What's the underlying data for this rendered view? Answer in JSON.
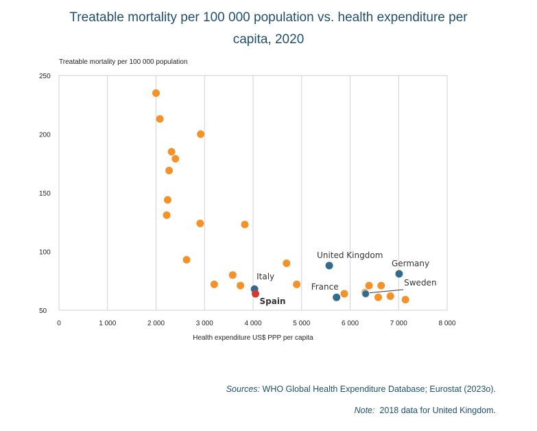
{
  "title_line1": "Treatable mortality per 100 000 population vs. health expenditure per",
  "title_line2": "capita, 2020",
  "sources_label": "Sources:",
  "sources_text": "WHO Global Health Expenditure Database; Eurostat (2023o).",
  "note_label": "Note:",
  "note_text": "2018 data for United Kingdom.",
  "colors": {
    "default": "#f39229",
    "highlight": "#336b8f",
    "spain": "#d63a2e",
    "grid": "#d0d0d0"
  },
  "chart_data": {
    "type": "scatter",
    "title": "Treatable mortality per 100 000 population vs. health expenditure per capita, 2020",
    "xlabel": "Health expenditure US$ PPP per capita",
    "ylabel": "Treatable mortality per 100 000 population",
    "xlim": [
      0,
      8000
    ],
    "ylim": [
      50,
      250
    ],
    "x_ticks": [
      0,
      1000,
      2000,
      3000,
      4000,
      5000,
      6000,
      7000,
      8000
    ],
    "x_tick_labels": [
      "0",
      "1 000",
      "2 000",
      "3 000",
      "4 000",
      "5 000",
      "6 000",
      "7 000",
      "8 000"
    ],
    "y_ticks": [
      50,
      100,
      150,
      200,
      250
    ],
    "y_tick_labels": [
      "50",
      "100",
      "150",
      "200",
      "250"
    ],
    "grid": "vertical",
    "points": [
      {
        "x": 2000,
        "y": 235,
        "group": "other"
      },
      {
        "x": 2080,
        "y": 213,
        "group": "other"
      },
      {
        "x": 2920,
        "y": 200,
        "group": "other"
      },
      {
        "x": 2320,
        "y": 185,
        "group": "other"
      },
      {
        "x": 2400,
        "y": 179,
        "group": "other"
      },
      {
        "x": 2270,
        "y": 169,
        "group": "other"
      },
      {
        "x": 2240,
        "y": 144,
        "group": "other"
      },
      {
        "x": 2220,
        "y": 131,
        "group": "other"
      },
      {
        "x": 2910,
        "y": 124,
        "group": "other"
      },
      {
        "x": 3830,
        "y": 123,
        "group": "other"
      },
      {
        "x": 2630,
        "y": 93,
        "group": "other"
      },
      {
        "x": 4690,
        "y": 90,
        "group": "other"
      },
      {
        "x": 3580,
        "y": 80,
        "group": "other"
      },
      {
        "x": 3200,
        "y": 72,
        "group": "other"
      },
      {
        "x": 3740,
        "y": 71,
        "group": "other"
      },
      {
        "x": 4900,
        "y": 72,
        "group": "other"
      },
      {
        "x": 5880,
        "y": 64,
        "group": "other"
      },
      {
        "x": 6390,
        "y": 71,
        "group": "other"
      },
      {
        "x": 6640,
        "y": 71,
        "group": "other"
      },
      {
        "x": 6310,
        "y": 65,
        "group": "other"
      },
      {
        "x": 6580,
        "y": 61,
        "group": "other"
      },
      {
        "x": 6830,
        "y": 62,
        "group": "other"
      },
      {
        "x": 7140,
        "y": 59,
        "group": "other"
      },
      {
        "x": 4030,
        "y": 68,
        "group": "highlight",
        "label": "Italy"
      },
      {
        "x": 4050,
        "y": 64,
        "group": "spain",
        "label": "Spain"
      },
      {
        "x": 5570,
        "y": 88,
        "group": "highlight",
        "label": "United Kingdom"
      },
      {
        "x": 7010,
        "y": 81,
        "group": "highlight",
        "label": "Germany"
      },
      {
        "x": 5720,
        "y": 61,
        "group": "highlight",
        "label": "France"
      },
      {
        "x": 6320,
        "y": 64,
        "group": "highlight",
        "label": "Sweden"
      }
    ]
  }
}
